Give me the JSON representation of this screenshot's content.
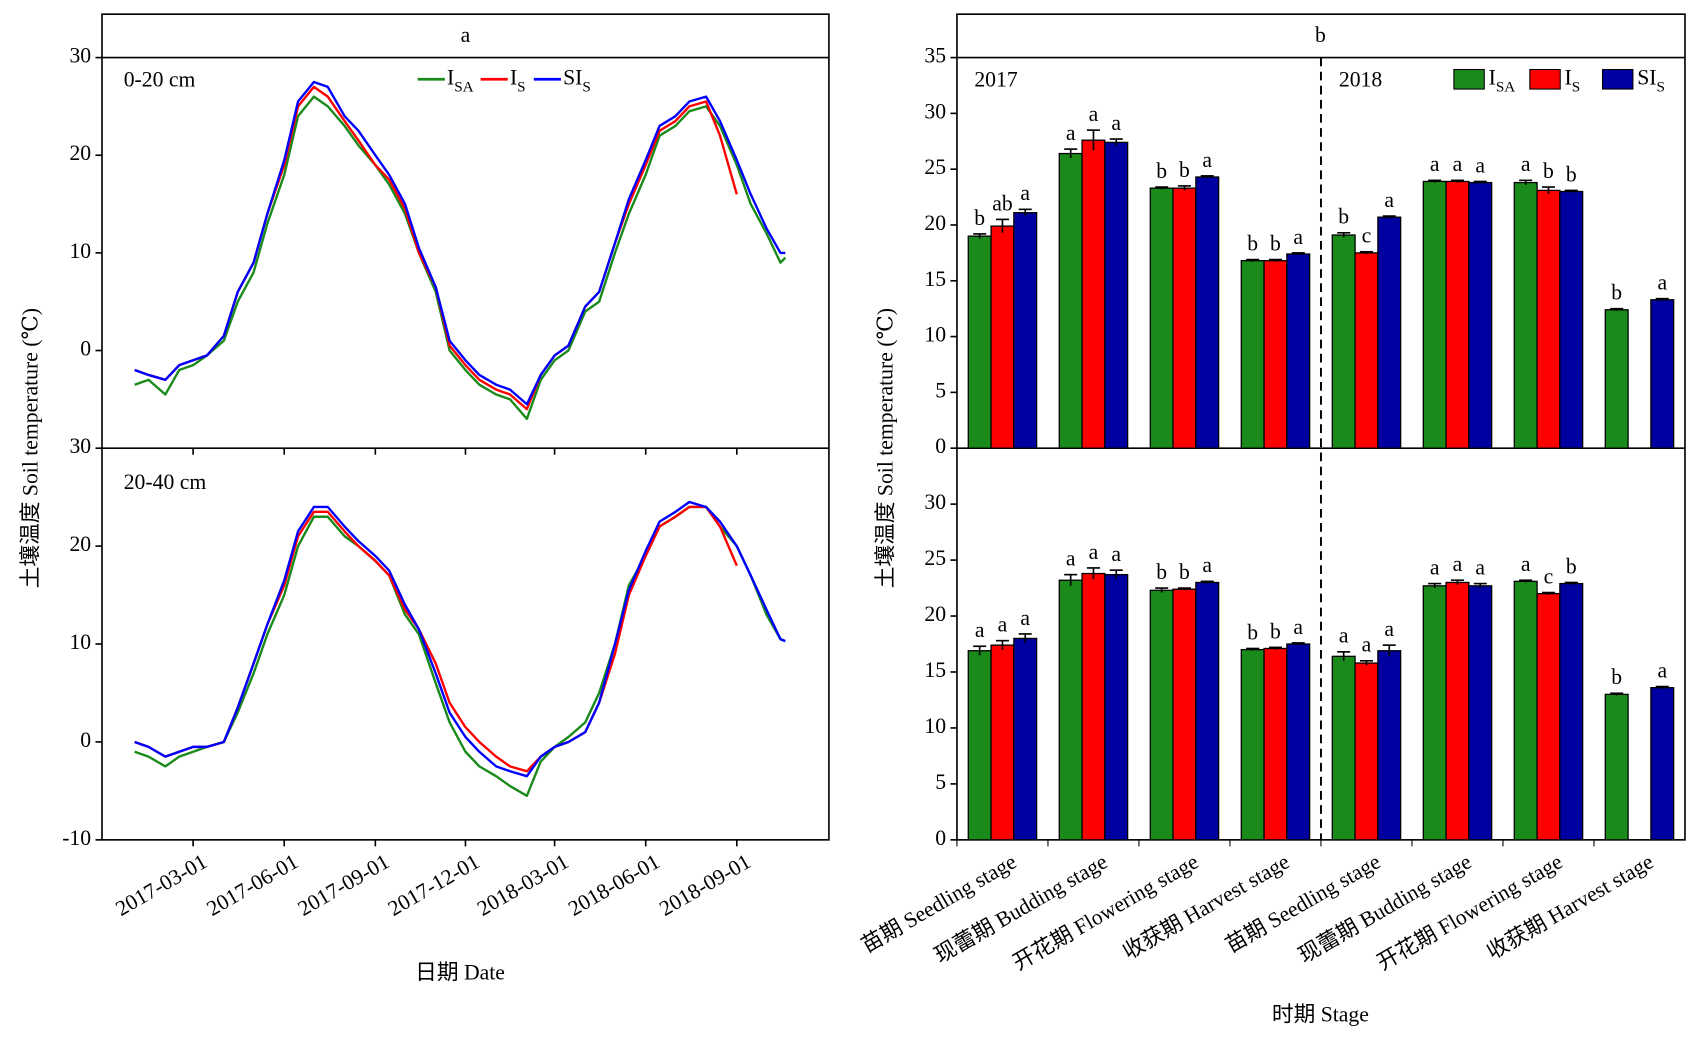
{
  "chart_data": [
    {
      "type": "line",
      "title": "a",
      "ylabel": "土壤温度 Soil temperature (℃)",
      "label": "0-20 cm",
      "xlim": [
        "2016-11-29",
        "2018-12-03"
      ],
      "ylim": [
        -10,
        30
      ],
      "yticks": [
        0,
        10,
        20,
        30
      ],
      "x": [
        "2017-01-01",
        "2017-01-15",
        "2017-02-01",
        "2017-02-15",
        "2017-03-01",
        "2017-03-15",
        "2017-04-01",
        "2017-04-15",
        "2017-05-01",
        "2017-05-15",
        "2017-06-01",
        "2017-06-15",
        "2017-07-01",
        "2017-07-15",
        "2017-08-01",
        "2017-08-15",
        "2017-09-01",
        "2017-09-15",
        "2017-10-01",
        "2017-10-15",
        "2017-11-01",
        "2017-11-15",
        "2017-12-01",
        "2017-12-15",
        "2018-01-01",
        "2018-01-15",
        "2018-02-01",
        "2018-02-15",
        "2018-03-01",
        "2018-03-15",
        "2018-04-01",
        "2018-04-15",
        "2018-05-01",
        "2018-05-15",
        "2018-06-01",
        "2018-06-15",
        "2018-07-01",
        "2018-07-15",
        "2018-08-01",
        "2018-08-15",
        "2018-09-01",
        "2018-09-15",
        "2018-10-01",
        "2018-10-15",
        "2018-10-20"
      ],
      "series": [
        {
          "name": [
            "I",
            "SA"
          ],
          "color": "#1a8a1a",
          "values": [
            -3.5,
            -3,
            -4.5,
            -2,
            -1.5,
            -0.5,
            1,
            5,
            8,
            13,
            18,
            24,
            26,
            25,
            23,
            21,
            19,
            17,
            14,
            10,
            6,
            0,
            -2,
            -3.5,
            -4.5,
            -5,
            -7,
            -3,
            -1,
            0,
            4,
            5,
            10,
            14,
            18,
            22,
            23,
            24.5,
            25,
            23,
            19,
            15,
            12,
            9,
            9.5
          ]
        },
        {
          "name": [
            "I",
            "S"
          ],
          "color": "#ff0000",
          "values": [
            -2,
            -2.5,
            -3,
            -1.5,
            -1,
            -0.5,
            1.5,
            6,
            9,
            14,
            19,
            25,
            27,
            26,
            23.5,
            21.5,
            19,
            17.5,
            14.5,
            10,
            6.5,
            0.5,
            -1.5,
            -3,
            -4,
            -4.5,
            -6,
            -2.5,
            -0.5,
            0.5,
            4.5,
            6,
            11,
            15,
            19,
            22.5,
            23.5,
            25,
            25.5,
            22,
            16,
            null,
            null,
            null,
            null
          ]
        },
        {
          "name": [
            "SI",
            "S"
          ],
          "color": "#0000ff",
          "values": [
            -2,
            -2.5,
            -3,
            -1.5,
            -1,
            -0.5,
            1.5,
            6,
            9,
            14,
            19.5,
            25.5,
            27.5,
            27,
            24,
            22.5,
            20,
            18,
            15,
            10.5,
            6.5,
            1,
            -1,
            -2.5,
            -3.5,
            -4,
            -5.5,
            -2.5,
            -0.5,
            0.5,
            4.5,
            6,
            11,
            15.5,
            19.5,
            23,
            24,
            25.5,
            26,
            23.5,
            19.5,
            16,
            12.5,
            10,
            10
          ]
        }
      ]
    },
    {
      "type": "line",
      "label": "20-40 cm",
      "xlabel": "日期 Date",
      "xlim": [
        "2016-11-29",
        "2018-12-03"
      ],
      "ylim": [
        -10,
        30
      ],
      "yticks": [
        -10,
        0,
        10,
        20,
        30
      ],
      "xticks": [
        "2017-03-01",
        "2017-06-01",
        "2017-09-01",
        "2017-12-01",
        "2018-03-01",
        "2018-06-01",
        "2018-09-01"
      ],
      "x": [
        "2017-01-01",
        "2017-01-15",
        "2017-02-01",
        "2017-02-15",
        "2017-03-01",
        "2017-03-15",
        "2017-04-01",
        "2017-04-15",
        "2017-05-01",
        "2017-05-15",
        "2017-06-01",
        "2017-06-15",
        "2017-07-01",
        "2017-07-15",
        "2017-08-01",
        "2017-08-15",
        "2017-09-01",
        "2017-09-15",
        "2017-10-01",
        "2017-10-15",
        "2017-11-01",
        "2017-11-15",
        "2017-12-01",
        "2017-12-15",
        "2018-01-01",
        "2018-01-15",
        "2018-02-01",
        "2018-02-15",
        "2018-03-01",
        "2018-03-15",
        "2018-04-01",
        "2018-04-15",
        "2018-05-01",
        "2018-05-15",
        "2018-06-01",
        "2018-06-15",
        "2018-07-01",
        "2018-07-15",
        "2018-08-01",
        "2018-08-15",
        "2018-09-01",
        "2018-09-15",
        "2018-10-01",
        "2018-10-15",
        "2018-10-20"
      ],
      "series": [
        {
          "color": "#1a8a1a",
          "values": [
            -1,
            -1.5,
            -2.5,
            -1.5,
            -1,
            -0.5,
            0,
            3,
            7,
            11,
            15,
            20,
            23,
            23,
            21,
            20,
            18.5,
            17,
            13,
            11,
            6,
            2,
            -1,
            -2.5,
            -3.5,
            -4.5,
            -5.5,
            -2,
            -0.5,
            0.5,
            2,
            5,
            10,
            16,
            19,
            22,
            23,
            24,
            24,
            22,
            20,
            17,
            13,
            10.5,
            10.3
          ]
        },
        {
          "color": "#ff0000",
          "values": [
            0,
            -0.5,
            -1.5,
            -1,
            -0.5,
            -0.5,
            0,
            3.5,
            8,
            12,
            16,
            21,
            23.5,
            23.5,
            21.5,
            20,
            18.5,
            17,
            13.5,
            11.5,
            8,
            4,
            1.5,
            0,
            -1.5,
            -2.5,
            -3,
            -1.5,
            -0.5,
            0,
            1,
            4,
            9,
            15,
            19,
            22,
            23,
            24,
            24,
            22,
            18,
            null,
            null,
            null,
            null
          ]
        },
        {
          "color": "#0000ff",
          "values": [
            0,
            -0.5,
            -1.5,
            -1,
            -0.5,
            -0.5,
            0,
            3.5,
            8,
            12,
            16.5,
            21.5,
            24,
            24,
            22,
            20.5,
            19,
            17.5,
            14,
            11.5,
            7,
            3,
            0.5,
            -1,
            -2.5,
            -3,
            -3.5,
            -1.5,
            -0.5,
            0,
            1,
            4,
            10,
            15.5,
            19.5,
            22.5,
            23.5,
            24.5,
            24,
            22.5,
            20,
            17,
            13.5,
            10.5,
            10.3
          ]
        }
      ]
    },
    {
      "type": "bar",
      "title": "b",
      "ylabel": "土壤温度 Soil temperature (℃)",
      "annotations": [
        "2017",
        "2018"
      ],
      "ylim": [
        0,
        35
      ],
      "yticks": [
        0,
        5,
        10,
        15,
        20,
        25,
        30,
        35
      ],
      "series": [
        {
          "name": [
            "I",
            "SA"
          ],
          "color": "#1a8a1a",
          "values": [
            19.0,
            26.4,
            23.3,
            16.8,
            19.1,
            23.9,
            23.8,
            12.4
          ],
          "errors": [
            0.2,
            0.4,
            0.1,
            0.1,
            0.2,
            0.1,
            0.2,
            0.1
          ],
          "letters": [
            "b",
            "a",
            "b",
            "b",
            "b",
            "a",
            "a",
            "b"
          ]
        },
        {
          "name": [
            "I",
            "S"
          ],
          "color": "#ff0000",
          "values": [
            19.9,
            27.6,
            23.3,
            16.8,
            17.5,
            23.9,
            23.1,
            null
          ],
          "errors": [
            0.6,
            0.9,
            0.2,
            0.1,
            0.1,
            0.1,
            0.3,
            null
          ],
          "letters": [
            "ab",
            "a",
            "b",
            "b",
            "c",
            "a",
            "b",
            null
          ]
        },
        {
          "name": [
            "SI",
            "S"
          ],
          "color": "#0000a0",
          "values": [
            21.1,
            27.4,
            24.3,
            17.4,
            20.7,
            23.8,
            23.0,
            13.3
          ],
          "errors": [
            0.3,
            0.3,
            0.1,
            0.1,
            0.1,
            0.1,
            0.1,
            0.1
          ],
          "letters": [
            "a",
            "a",
            "a",
            "a",
            "a",
            "a",
            "b",
            "a"
          ]
        }
      ]
    },
    {
      "type": "bar",
      "xlabel": "时期 Stage",
      "categories": [
        "苗期 Seedling stage",
        "现蕾期 Budding stage",
        "开花期 Flowering stage",
        "收获期 Harvest stage",
        "苗期 Seedling stage",
        "现蕾期 Budding stage",
        "开花期 Flowering stage",
        "收获期 Harvest stage"
      ],
      "ylim": [
        0,
        35
      ],
      "yticks": [
        0,
        5,
        10,
        15,
        20,
        25,
        30
      ],
      "series": [
        {
          "color": "#1a8a1a",
          "values": [
            16.9,
            23.2,
            22.3,
            17.0,
            16.4,
            22.7,
            23.1,
            13.0
          ],
          "errors": [
            0.4,
            0.5,
            0.2,
            0.1,
            0.4,
            0.2,
            0.1,
            0.1
          ],
          "letters": [
            "a",
            "a",
            "b",
            "b",
            "a",
            "a",
            "a",
            "b"
          ]
        },
        {
          "color": "#ff0000",
          "values": [
            17.4,
            23.8,
            22.4,
            17.1,
            15.8,
            23.0,
            22.0,
            null
          ],
          "errors": [
            0.4,
            0.5,
            0.1,
            0.1,
            0.2,
            0.2,
            0.1,
            null
          ],
          "letters": [
            "a",
            "a",
            "b",
            "b",
            "a",
            "a",
            "c",
            null
          ]
        },
        {
          "color": "#0000a0",
          "values": [
            18.0,
            23.7,
            23.0,
            17.5,
            16.9,
            22.7,
            22.9,
            13.6
          ],
          "errors": [
            0.4,
            0.4,
            0.1,
            0.1,
            0.5,
            0.2,
            0.1,
            0.1
          ],
          "letters": [
            "a",
            "a",
            "a",
            "a",
            "a",
            "a",
            "b",
            "a"
          ]
        }
      ]
    }
  ]
}
